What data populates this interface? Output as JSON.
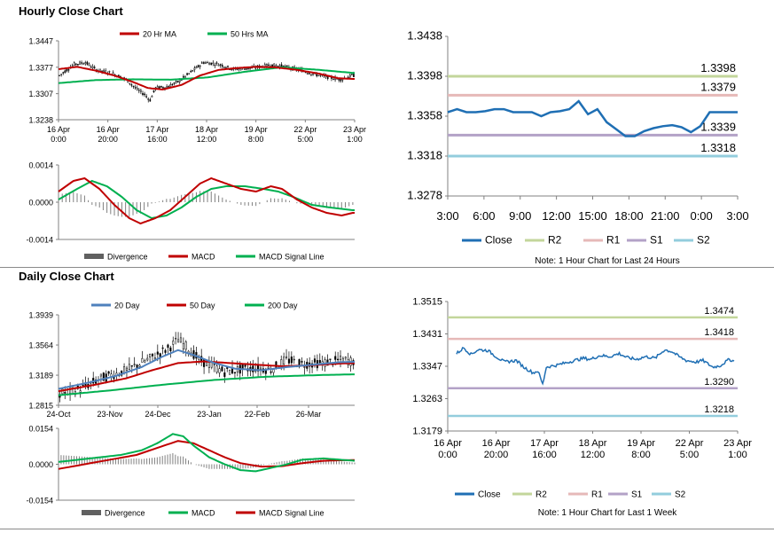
{
  "page": {
    "hourly_title": "Hourly Close Chart",
    "daily_title": "Daily Close Chart",
    "hourly_note": "Note: 1 Hour Chart for Last 24 Hours",
    "daily_note": "Note: 1 Hour Chart for Last 1 Week"
  },
  "colors": {
    "close": "#1f6fb4",
    "r2": "#c3d69b",
    "r1": "#e6b9b8",
    "s1": "#b3a2c7",
    "s2": "#93cddd",
    "red": "#c00000",
    "green": "#00b050",
    "blue": "#4f81bd",
    "grey": "#808080",
    "price": "#000000"
  },
  "chart_data": [
    {
      "id": "hourly_price",
      "type": "candlestick",
      "yticks": [
        "1.3447",
        "1.3377",
        "1.3307",
        "1.3238"
      ],
      "ylim": [
        1.3238,
        1.3447
      ],
      "xticks": [
        [
          "16 Apr",
          "0:00"
        ],
        [
          "16 Apr",
          "20:00"
        ],
        [
          "17 Apr",
          "16:00"
        ],
        [
          "18 Apr",
          "12:00"
        ],
        [
          "19 Apr",
          "8:00"
        ],
        [
          "22 Apr",
          "5:00"
        ],
        [
          "23 Apr",
          "1:00"
        ]
      ],
      "legend": [
        "20 Hr MA",
        "50 Hrs MA"
      ],
      "price_anchors": [
        [
          0,
          1.3355
        ],
        [
          8,
          1.3385
        ],
        [
          14,
          1.339
        ],
        [
          20,
          1.337
        ],
        [
          28,
          1.3362
        ],
        [
          36,
          1.3345
        ],
        [
          42,
          1.3318
        ],
        [
          46,
          1.3305
        ],
        [
          49,
          1.329
        ],
        [
          52,
          1.3322
        ],
        [
          58,
          1.3325
        ],
        [
          64,
          1.3338
        ],
        [
          70,
          1.336
        ],
        [
          78,
          1.339
        ],
        [
          86,
          1.3385
        ],
        [
          94,
          1.3372
        ],
        [
          104,
          1.3375
        ],
        [
          114,
          1.3383
        ],
        [
          120,
          1.338
        ],
        [
          130,
          1.337
        ],
        [
          138,
          1.3358
        ],
        [
          146,
          1.335
        ],
        [
          152,
          1.3345
        ],
        [
          158,
          1.3355
        ]
      ],
      "ma20_anchors": [
        [
          0,
          1.3372
        ],
        [
          10,
          1.3378
        ],
        [
          20,
          1.3368
        ],
        [
          30,
          1.3355
        ],
        [
          40,
          1.3338
        ],
        [
          48,
          1.3322
        ],
        [
          56,
          1.3318
        ],
        [
          66,
          1.333
        ],
        [
          76,
          1.3355
        ],
        [
          86,
          1.337
        ],
        [
          96,
          1.3375
        ],
        [
          106,
          1.3378
        ],
        [
          116,
          1.3377
        ],
        [
          128,
          1.337
        ],
        [
          140,
          1.336
        ],
        [
          150,
          1.3348
        ],
        [
          158,
          1.3346
        ]
      ],
      "ma50_anchors": [
        [
          0,
          1.3335
        ],
        [
          20,
          1.3343
        ],
        [
          40,
          1.3345
        ],
        [
          60,
          1.3344
        ],
        [
          80,
          1.335
        ],
        [
          100,
          1.3365
        ],
        [
          120,
          1.3377
        ],
        [
          140,
          1.337
        ],
        [
          158,
          1.3362
        ]
      ]
    },
    {
      "id": "hourly_macd",
      "type": "macd",
      "yticks": [
        "0.0014",
        "0.0000",
        "-0.0014"
      ],
      "ylim": [
        -0.0014,
        0.0014
      ],
      "legend": [
        "Divergence",
        "MACD",
        "MACD Signal Line"
      ],
      "macd_anchors": [
        [
          0,
          0.0004
        ],
        [
          8,
          0.0008
        ],
        [
          14,
          0.0009
        ],
        [
          22,
          0.0005
        ],
        [
          30,
          -0.0001
        ],
        [
          38,
          -0.0006
        ],
        [
          44,
          -0.0008
        ],
        [
          52,
          -0.0006
        ],
        [
          60,
          -0.0003
        ],
        [
          68,
          0.0002
        ],
        [
          76,
          0.0007
        ],
        [
          82,
          0.0009
        ],
        [
          90,
          0.0007
        ],
        [
          98,
          0.0005
        ],
        [
          106,
          0.0004
        ],
        [
          114,
          0.0006
        ],
        [
          120,
          0.0005
        ],
        [
          128,
          0.0001
        ],
        [
          136,
          -0.0002
        ],
        [
          144,
          -0.0004
        ],
        [
          152,
          -0.0005
        ],
        [
          158,
          -0.0004
        ]
      ],
      "signal_anchors": [
        [
          0,
          0.0001
        ],
        [
          10,
          0.0005
        ],
        [
          18,
          0.0008
        ],
        [
          26,
          0.0006
        ],
        [
          34,
          0.0002
        ],
        [
          42,
          -0.0003
        ],
        [
          50,
          -0.0006
        ],
        [
          58,
          -0.0005
        ],
        [
          66,
          -0.0002
        ],
        [
          74,
          0.0002
        ],
        [
          82,
          0.0005
        ],
        [
          90,
          0.0006
        ],
        [
          100,
          0.0006
        ],
        [
          110,
          0.0005
        ],
        [
          118,
          0.0004
        ],
        [
          126,
          0.0002
        ],
        [
          136,
          -0.0001
        ],
        [
          146,
          -0.0002
        ],
        [
          158,
          -0.0003
        ]
      ]
    },
    {
      "id": "hourly_levels",
      "type": "line",
      "yticks": [
        "1.3438",
        "1.3398",
        "1.3358",
        "1.3318",
        "1.3278"
      ],
      "ylim": [
        1.3278,
        1.3438
      ],
      "xticks": [
        "3:00",
        "6:00",
        "9:00",
        "12:00",
        "15:00",
        "18:00",
        "21:00",
        "0:00",
        "3:00"
      ],
      "close": [
        1.3362,
        1.3365,
        1.3362,
        1.3362,
        1.3363,
        1.3365,
        1.3365,
        1.3362,
        1.3362,
        1.3362,
        1.3358,
        1.3362,
        1.3363,
        1.3365,
        1.3373,
        1.336,
        1.3365,
        1.3352,
        1.3345,
        1.3338,
        1.3338,
        1.3343,
        1.3346,
        1.3348,
        1.3349,
        1.3347,
        1.3342,
        1.3348,
        1.3362,
        1.3362,
        1.3362,
        1.3362
      ],
      "levels": [
        {
          "name": "R2",
          "value": 1.3398,
          "label": "1.3398"
        },
        {
          "name": "R1",
          "value": 1.3379,
          "label": "1.3379"
        },
        {
          "name": "S1",
          "value": 1.3339,
          "label": "1.3339"
        },
        {
          "name": "S2",
          "value": 1.3318,
          "label": "1.3318"
        }
      ],
      "legend": [
        "Close",
        "R2",
        "R1",
        "S1",
        "S2"
      ]
    },
    {
      "id": "daily_price",
      "type": "candlestick",
      "yticks": [
        "1.3939",
        "1.3564",
        "1.3189",
        "1.2815"
      ],
      "ylim": [
        1.2815,
        1.3939
      ],
      "xticks": [
        "24-Oct",
        "23-Nov",
        "24-Dec",
        "23-Jan",
        "22-Feb",
        "26-Mar"
      ],
      "legend": [
        "20 Day",
        "50 Day",
        "200 Day"
      ],
      "price_anchors": [
        [
          0,
          1.296
        ],
        [
          8,
          1.302
        ],
        [
          16,
          1.315
        ],
        [
          26,
          1.325
        ],
        [
          34,
          1.338
        ],
        [
          42,
          1.352
        ],
        [
          46,
          1.363
        ],
        [
          50,
          1.352
        ],
        [
          54,
          1.338
        ],
        [
          60,
          1.329
        ],
        [
          64,
          1.323
        ],
        [
          70,
          1.326
        ],
        [
          76,
          1.328
        ],
        [
          82,
          1.326
        ],
        [
          88,
          1.338
        ],
        [
          94,
          1.333
        ],
        [
          102,
          1.334
        ],
        [
          110,
          1.338
        ],
        [
          114,
          1.336
        ]
      ],
      "ma20_anchors": [
        [
          0,
          1.302
        ],
        [
          12,
          1.31
        ],
        [
          22,
          1.318
        ],
        [
          32,
          1.329
        ],
        [
          40,
          1.342
        ],
        [
          46,
          1.35
        ],
        [
          52,
          1.344
        ],
        [
          60,
          1.334
        ],
        [
          68,
          1.327
        ],
        [
          78,
          1.325
        ],
        [
          88,
          1.329
        ],
        [
          98,
          1.332
        ],
        [
          108,
          1.335
        ],
        [
          114,
          1.3355
        ]
      ],
      "ma50_anchors": [
        [
          0,
          1.299
        ],
        [
          14,
          1.307
        ],
        [
          26,
          1.315
        ],
        [
          36,
          1.325
        ],
        [
          46,
          1.334
        ],
        [
          56,
          1.336
        ],
        [
          66,
          1.334
        ],
        [
          76,
          1.332
        ],
        [
          86,
          1.33
        ],
        [
          96,
          1.331
        ],
        [
          106,
          1.333
        ],
        [
          114,
          1.334
        ]
      ],
      "ma200_anchors": [
        [
          0,
          1.294
        ],
        [
          20,
          1.3
        ],
        [
          40,
          1.307
        ],
        [
          60,
          1.313
        ],
        [
          80,
          1.317
        ],
        [
          100,
          1.319
        ],
        [
          114,
          1.32
        ]
      ]
    },
    {
      "id": "daily_macd",
      "type": "macd",
      "yticks": [
        "0.0154",
        "0.0000",
        "-0.0154"
      ],
      "ylim": [
        -0.0154,
        0.0154
      ],
      "legend": [
        "Divergence",
        "MACD",
        "MACD Signal Line"
      ],
      "macd_anchors": [
        [
          0,
          0.001
        ],
        [
          8,
          0.002
        ],
        [
          16,
          0.003
        ],
        [
          24,
          0.004
        ],
        [
          32,
          0.006
        ],
        [
          38,
          0.009
        ],
        [
          44,
          0.013
        ],
        [
          48,
          0.012
        ],
        [
          52,
          0.008
        ],
        [
          58,
          0.003
        ],
        [
          64,
          0.0
        ],
        [
          70,
          -0.0025
        ],
        [
          76,
          -0.003
        ],
        [
          82,
          -0.0015
        ],
        [
          88,
          0.0
        ],
        [
          94,
          0.002
        ],
        [
          102,
          0.0025
        ],
        [
          108,
          0.002
        ],
        [
          114,
          0.0015
        ]
      ],
      "signal_anchors": [
        [
          0,
          -0.002
        ],
        [
          10,
          0.0
        ],
        [
          20,
          0.002
        ],
        [
          30,
          0.004
        ],
        [
          38,
          0.007
        ],
        [
          46,
          0.01
        ],
        [
          52,
          0.009
        ],
        [
          58,
          0.006
        ],
        [
          64,
          0.003
        ],
        [
          70,
          0.0005
        ],
        [
          78,
          -0.001
        ],
        [
          86,
          -0.0008
        ],
        [
          94,
          0.0005
        ],
        [
          102,
          0.0015
        ],
        [
          108,
          0.0017
        ],
        [
          114,
          0.0018
        ]
      ]
    },
    {
      "id": "daily_levels",
      "type": "line",
      "yticks": [
        "1.3515",
        "1.3431",
        "1.3347",
        "1.3263",
        "1.3179"
      ],
      "ylim": [
        1.3179,
        1.3515
      ],
      "xticks": [
        [
          "16 Apr",
          "0:00"
        ],
        [
          "16 Apr",
          "20:00"
        ],
        [
          "17 Apr",
          "16:00"
        ],
        [
          "18 Apr",
          "12:00"
        ],
        [
          "19 Apr",
          "8:00"
        ],
        [
          "22 Apr",
          "5:00"
        ],
        [
          "23 Apr",
          "1:00"
        ]
      ],
      "close_anchors": [
        [
          0,
          1.338
        ],
        [
          6,
          1.3395
        ],
        [
          12,
          1.3378
        ],
        [
          18,
          1.339
        ],
        [
          26,
          1.3388
        ],
        [
          34,
          1.337
        ],
        [
          40,
          1.3358
        ],
        [
          50,
          1.3362
        ],
        [
          56,
          1.3345
        ],
        [
          64,
          1.333
        ],
        [
          68,
          1.3335
        ],
        [
          72,
          1.33
        ],
        [
          75,
          1.3345
        ],
        [
          84,
          1.335
        ],
        [
          96,
          1.336
        ],
        [
          106,
          1.3368
        ],
        [
          112,
          1.3365
        ],
        [
          120,
          1.3375
        ],
        [
          128,
          1.3372
        ],
        [
          136,
          1.338
        ],
        [
          142,
          1.337
        ],
        [
          150,
          1.3365
        ],
        [
          158,
          1.3372
        ],
        [
          166,
          1.3368
        ],
        [
          174,
          1.339
        ],
        [
          180,
          1.3385
        ],
        [
          186,
          1.3372
        ],
        [
          192,
          1.3362
        ],
        [
          200,
          1.3358
        ],
        [
          206,
          1.3362
        ],
        [
          214,
          1.3345
        ],
        [
          220,
          1.3348
        ],
        [
          228,
          1.3365
        ],
        [
          232,
          1.336
        ]
      ],
      "levels": [
        {
          "name": "R2",
          "value": 1.3474,
          "label": "1.3474"
        },
        {
          "name": "R1",
          "value": 1.3418,
          "label": "1.3418"
        },
        {
          "name": "S1",
          "value": 1.329,
          "label": "1.3290"
        },
        {
          "name": "S2",
          "value": 1.3218,
          "label": "1.3218"
        }
      ],
      "legend": [
        "Close",
        "R2",
        "R1",
        "S1",
        "S2"
      ]
    }
  ]
}
